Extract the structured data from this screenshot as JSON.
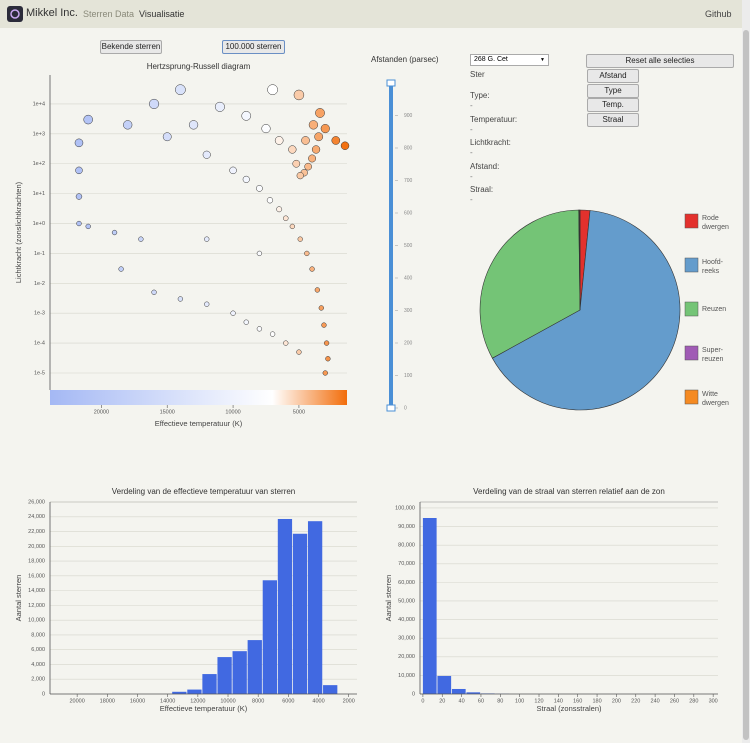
{
  "navbar": {
    "brand": "Mikkel Inc.",
    "links": [
      "Sterren",
      "Data",
      "Visualisatie"
    ],
    "github": "Github"
  },
  "dataset_buttons": [
    "Bekende sterren",
    "100.000 sterren"
  ],
  "slider": {
    "label": "Afstanden (parsec)",
    "ylim": [
      0,
      1000
    ],
    "yticks": [
      0,
      100,
      200,
      300,
      400,
      500,
      600,
      700,
      800,
      900
    ],
    "selection": [
      0,
      1000
    ]
  },
  "star_select": "268 G. Cet",
  "info": {
    "title": "Ster",
    "fields": [
      {
        "label": "Type:",
        "value": "-"
      },
      {
        "label": "Temperatuur:",
        "value": "-"
      },
      {
        "label": "Lichtkracht:",
        "value": "-"
      },
      {
        "label": "Afstand:",
        "value": "-"
      },
      {
        "label": "Straal:",
        "value": "-"
      }
    ]
  },
  "reset_buttons": {
    "reset": "Reset alle selecties",
    "items": [
      "Afstand",
      "Type",
      "Temp.",
      "Straal"
    ]
  },
  "chart_data": [
    {
      "type": "scatter",
      "title": "Hertzsprung-Russell diagram",
      "xlabel": "Effectieve temperatuur (K)",
      "ylabel": "Lichtkracht (zonslichtkrachten)",
      "xlim": [
        23900,
        1350
      ],
      "ylim": [
        2.7e-06,
        93000
      ],
      "ylog": true,
      "grid": true,
      "xticks": [
        20000,
        15000,
        10000,
        5000
      ],
      "yticks": [
        {
          "value": 10000,
          "label": "1e+4"
        },
        {
          "value": 1000,
          "label": "1e+3"
        },
        {
          "value": 100,
          "label": "1e+2"
        },
        {
          "value": 10,
          "label": "1e+1"
        },
        {
          "value": 1,
          "label": "1e+0"
        },
        {
          "value": 0.1,
          "label": "1e-1"
        },
        {
          "value": 0.01,
          "label": "1e-2"
        },
        {
          "value": 0.001,
          "label": "1e-3"
        },
        {
          "value": 0.0001,
          "label": "1e-4"
        },
        {
          "value": 1e-05,
          "label": "1e-5"
        }
      ],
      "colorscale": [
        {
          "value": 23900,
          "color": "#a4b8f4"
        },
        {
          "value": 7000,
          "color": "#ffffff"
        },
        {
          "value": 1350,
          "color": "#f26d0b"
        }
      ],
      "x": [
        2800,
        2900,
        3100,
        3300,
        3600,
        4000,
        4400,
        4900,
        5500,
        6000,
        6500,
        7200,
        8000,
        9000,
        10000,
        12000,
        15000,
        18000,
        21000,
        3500,
        3700,
        4000,
        4300,
        4600,
        4900,
        5200,
        3900,
        3400,
        4500,
        5500,
        6500,
        7500,
        9000,
        11000,
        13000,
        14000,
        16000,
        5000,
        7000,
        1500,
        2200,
        3000,
        21700,
        21700,
        21700,
        21700,
        21000,
        19000,
        17000,
        18500,
        16000,
        14000,
        12000,
        10000,
        9000,
        8000,
        7000,
        6000,
        5000,
        3000,
        8000,
        12000
      ],
      "values": [
        3e-05,
        0.0001,
        0.0004,
        0.0015,
        0.006,
        0.03,
        0.1,
        0.3,
        0.8,
        1.5,
        3,
        6,
        15,
        30,
        60,
        200,
        800,
        2000,
        3000,
        800,
        300,
        150,
        80,
        50,
        40,
        100,
        2000,
        5000,
        600,
        300,
        600,
        1500,
        4000,
        8000,
        2000,
        30000,
        10000,
        20000,
        30000,
        400,
        600,
        1500,
        500,
        60,
        8,
        1,
        0.8,
        0.5,
        0.3,
        0.03,
        0.005,
        0.003,
        0.002,
        0.001,
        0.0005,
        0.0003,
        0.0002,
        0.0001,
        5e-05,
        1e-05,
        0.1,
        0.3
      ]
    },
    {
      "type": "pie",
      "categories": [
        "Rode dwergen",
        "Hoofd-reeks",
        "Reuzen",
        "Super-reuzen",
        "Witte dwergen"
      ],
      "values": [
        1.6,
        65.4,
        32.8,
        0.1,
        0.1
      ],
      "colors": [
        "#e3312d",
        "#649ccc",
        "#74c476",
        "#a05bb5",
        "#f58a22"
      ],
      "legend": "right"
    },
    {
      "type": "histogram",
      "title": "Verdeling van de effectieve temperatuur van sterren",
      "xlabel": "Effectieve temperatuur (K)",
      "ylabel": "Aantal sterren",
      "bins": [
        13700,
        12700,
        11700,
        10700,
        9700,
        8700,
        7700,
        6700,
        5700,
        4700,
        3700,
        2700
      ],
      "values": [
        300,
        600,
        2700,
        5000,
        5800,
        7300,
        15400,
        23700,
        21700,
        23400,
        1200
      ],
      "color": "#4169e1",
      "xlim": [
        21800,
        1450
      ],
      "ylim": [
        0,
        26000
      ],
      "grid": true,
      "xticks": [
        20000,
        18000,
        16000,
        14000,
        12000,
        10000,
        8000,
        6000,
        4000,
        2000
      ],
      "yticks": [
        0,
        {
          "value": 2000,
          "label": "2,000"
        },
        {
          "value": 4000,
          "label": "4,000"
        },
        {
          "value": 6000,
          "label": "6,000"
        },
        {
          "value": 8000,
          "label": "8,000"
        },
        {
          "value": 10000,
          "label": "10,000"
        },
        {
          "value": 12000,
          "label": "12,000"
        },
        {
          "value": 14000,
          "label": "14,000"
        },
        {
          "value": 16000,
          "label": "16,000"
        },
        {
          "value": 18000,
          "label": "18,000"
        },
        {
          "value": 20000,
          "label": "20,000"
        },
        {
          "value": 22000,
          "label": "22,000"
        },
        {
          "value": 24000,
          "label": "24,000"
        },
        {
          "value": 26000,
          "label": "26,000"
        }
      ]
    },
    {
      "type": "histogram",
      "title": "Verdeling van de straal van sterren relatief aan de zon",
      "xlabel": "Straal (zonsstralen)",
      "ylabel": "Aantal sterren",
      "bins": [
        0,
        15,
        30,
        45,
        60,
        75,
        90
      ],
      "values": [
        94600,
        9700,
        2700,
        900,
        300,
        100
      ],
      "color": "#4169e1",
      "xlim": [
        -3,
        305
      ],
      "ylim": [
        0,
        103200
      ],
      "grid": true,
      "xticks": [
        0,
        20,
        40,
        60,
        80,
        100,
        120,
        140,
        160,
        180,
        200,
        220,
        240,
        260,
        280,
        300
      ],
      "yticks": [
        0,
        {
          "value": 10000,
          "label": "10,000"
        },
        {
          "value": 20000,
          "label": "20,000"
        },
        {
          "value": 30000,
          "label": "30,000"
        },
        {
          "value": 40000,
          "label": "40,000"
        },
        {
          "value": 50000,
          "label": "50,000"
        },
        {
          "value": 60000,
          "label": "60,000"
        },
        {
          "value": 70000,
          "label": "70,000"
        },
        {
          "value": 80000,
          "label": "80,000"
        },
        {
          "value": 90000,
          "label": "90,000"
        },
        {
          "value": 100000,
          "label": "100,000"
        }
      ]
    }
  ]
}
